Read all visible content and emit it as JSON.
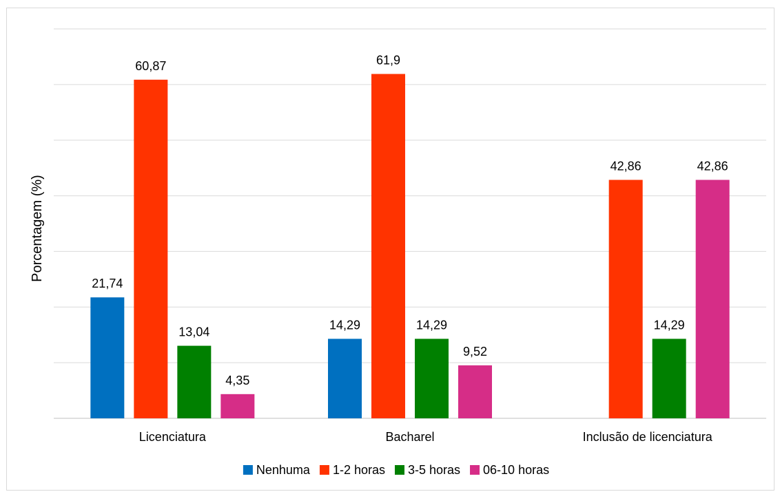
{
  "chart_data": {
    "type": "bar",
    "title": "",
    "xlabel": "",
    "ylabel": "Porcentagem (%)",
    "ylim": [
      0,
      70
    ],
    "grid": true,
    "gridline_interval": 10,
    "y_tick_labels_visible": false,
    "legend_position": "bottom",
    "categories": [
      "Licenciatura",
      "Bacharel",
      "Inclusão de licenciatura"
    ],
    "series": [
      {
        "name": "Nenhuma",
        "color": "#0070c0",
        "values": [
          21.74,
          14.29,
          null
        ],
        "labels": [
          "21,74",
          "14,29",
          ""
        ]
      },
      {
        "name": "1-2 horas",
        "color": "#ff3300",
        "values": [
          60.87,
          61.9,
          42.86
        ],
        "labels": [
          "60,87",
          "61,9",
          "42,86"
        ]
      },
      {
        "name": "3-5 horas",
        "color": "#008000",
        "values": [
          13.04,
          14.29,
          14.29
        ],
        "labels": [
          "13,04",
          "14,29",
          "14,29"
        ]
      },
      {
        "name": "06-10 horas",
        "color": "#d62d87",
        "values": [
          4.35,
          9.52,
          42.86
        ],
        "labels": [
          "4,35",
          "9,52",
          "42,86"
        ]
      }
    ]
  }
}
